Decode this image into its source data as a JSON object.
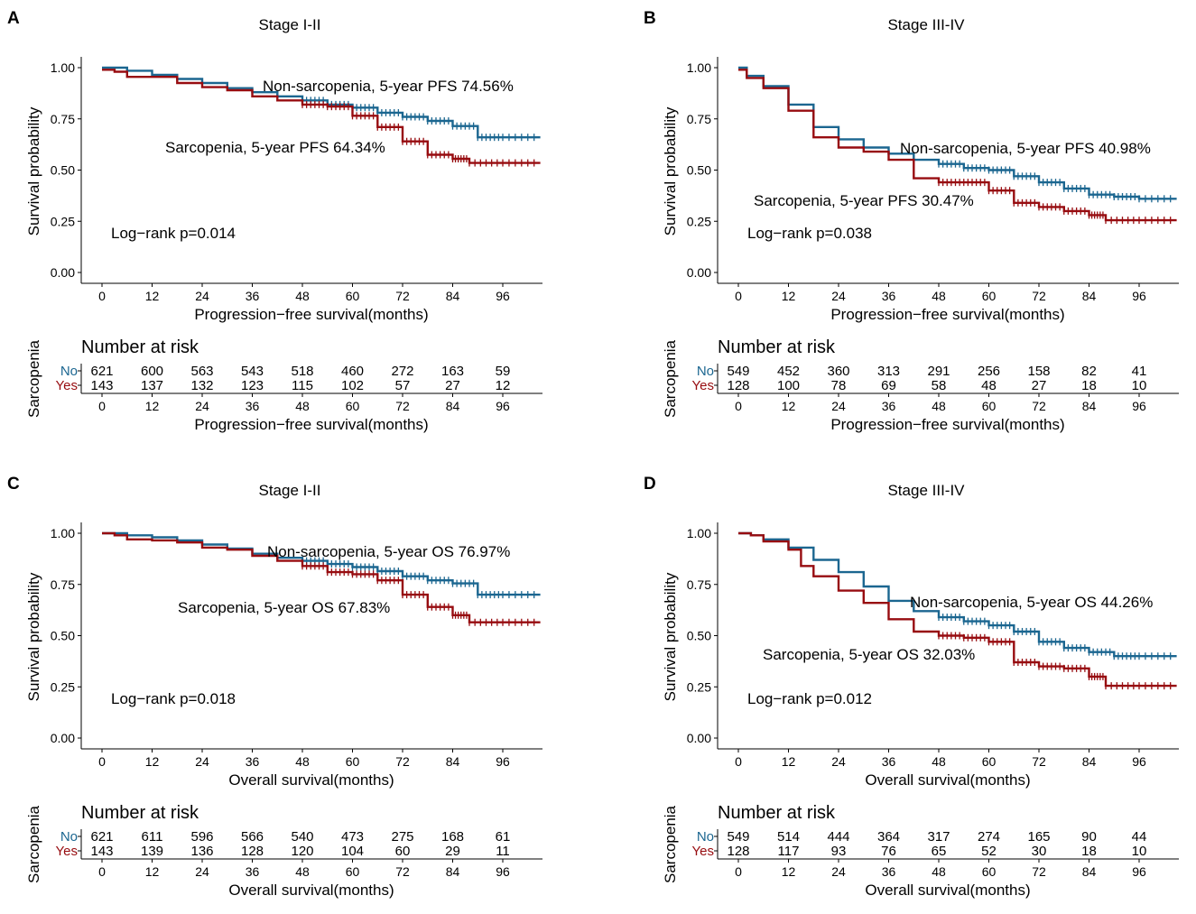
{
  "colors": {
    "no": "#1B6690",
    "yes": "#970C10",
    "axis": "#000000"
  },
  "chart_data": [
    {
      "panel": "A",
      "type": "line",
      "title": "Stage I-II",
      "xlabel": "Progression−free survival(months)",
      "ylabel": "Survival probability",
      "xticks": [
        "0",
        "12",
        "24",
        "36",
        "48",
        "60",
        "72",
        "84",
        "96"
      ],
      "yticks": [
        "0.00",
        "0.25",
        "0.50",
        "0.75",
        "1.00"
      ],
      "xlim": [
        0,
        105
      ],
      "ylim": [
        0,
        1
      ],
      "series": [
        {
          "name": "Non-sarcopenia",
          "group": "no",
          "x": [
            0,
            6,
            12,
            18,
            24,
            30,
            36,
            42,
            48,
            54,
            60,
            66,
            72,
            78,
            84,
            90,
            96,
            105
          ],
          "y": [
            1.0,
            0.985,
            0.965,
            0.945,
            0.925,
            0.9,
            0.88,
            0.86,
            0.84,
            0.82,
            0.805,
            0.78,
            0.76,
            0.74,
            0.715,
            0.66,
            0.66,
            0.66
          ]
        },
        {
          "name": "Sarcopenia",
          "group": "yes",
          "x": [
            0,
            3,
            6,
            12,
            18,
            24,
            30,
            36,
            42,
            48,
            54,
            60,
            66,
            72,
            78,
            84,
            88,
            96,
            105
          ],
          "y": [
            0.99,
            0.98,
            0.955,
            0.955,
            0.925,
            0.905,
            0.89,
            0.86,
            0.84,
            0.82,
            0.81,
            0.765,
            0.71,
            0.64,
            0.575,
            0.555,
            0.535,
            0.535,
            0.535
          ]
        }
      ],
      "annotations": {
        "non_sarcopenia": "Non-sarcopenia, 5-year PFS 74.56%",
        "sarcopenia": "Sarcopenia, 5-year PFS 64.34%",
        "logrank": "Log−rank p=0.014"
      },
      "risk_table": {
        "title": "Number at risk",
        "ylabel": "Sarcopenia",
        "xlabel": "Progression−free survival(months)",
        "groups": [
          "No",
          "Yes"
        ],
        "no": [
          "621",
          "600",
          "563",
          "543",
          "518",
          "460",
          "272",
          "163",
          "59"
        ],
        "yes": [
          "143",
          "137",
          "132",
          "123",
          "115",
          "102",
          "57",
          "27",
          "12"
        ]
      }
    },
    {
      "panel": "B",
      "type": "line",
      "title": "Stage III-IV",
      "xlabel": "Progression−free survival(months)",
      "ylabel": "Survival probability",
      "xticks": [
        "0",
        "12",
        "24",
        "36",
        "48",
        "60",
        "72",
        "84",
        "96"
      ],
      "yticks": [
        "0.00",
        "0.25",
        "0.50",
        "0.75",
        "1.00"
      ],
      "xlim": [
        0,
        105
      ],
      "ylim": [
        0,
        1
      ],
      "series": [
        {
          "name": "Non-sarcopenia",
          "group": "no",
          "x": [
            0,
            2,
            6,
            12,
            18,
            24,
            30,
            36,
            42,
            48,
            54,
            60,
            66,
            72,
            78,
            84,
            90,
            96,
            105
          ],
          "y": [
            1.0,
            0.96,
            0.91,
            0.82,
            0.71,
            0.65,
            0.61,
            0.58,
            0.55,
            0.53,
            0.51,
            0.5,
            0.47,
            0.44,
            0.41,
            0.38,
            0.37,
            0.36,
            0.36
          ]
        },
        {
          "name": "Sarcopenia",
          "group": "yes",
          "x": [
            0,
            2,
            6,
            12,
            18,
            24,
            30,
            36,
            42,
            48,
            54,
            60,
            66,
            72,
            78,
            84,
            88,
            96,
            105
          ],
          "y": [
            0.99,
            0.95,
            0.9,
            0.79,
            0.66,
            0.61,
            0.59,
            0.55,
            0.46,
            0.44,
            0.44,
            0.4,
            0.34,
            0.32,
            0.3,
            0.28,
            0.255,
            0.255,
            0.255
          ]
        }
      ],
      "annotations": {
        "non_sarcopenia": "Non-sarcopenia, 5-year PFS 40.98%",
        "sarcopenia": "Sarcopenia, 5-year PFS 30.47%",
        "logrank": "Log−rank p=0.038"
      },
      "risk_table": {
        "title": "Number at risk",
        "ylabel": "Sarcopenia",
        "xlabel": "Progression−free survival(months)",
        "groups": [
          "No",
          "Yes"
        ],
        "no": [
          "549",
          "452",
          "360",
          "313",
          "291",
          "256",
          "158",
          "82",
          "41"
        ],
        "yes": [
          "128",
          "100",
          "78",
          "69",
          "58",
          "48",
          "27",
          "18",
          "10"
        ]
      }
    },
    {
      "panel": "C",
      "type": "line",
      "title": "Stage I-II",
      "xlabel": "Overall survival(months)",
      "ylabel": "Survival probability",
      "xticks": [
        "0",
        "12",
        "24",
        "36",
        "48",
        "60",
        "72",
        "84",
        "96"
      ],
      "yticks": [
        "0.00",
        "0.25",
        "0.50",
        "0.75",
        "1.00"
      ],
      "xlim": [
        0,
        105
      ],
      "ylim": [
        0,
        1
      ],
      "series": [
        {
          "name": "Non-sarcopenia",
          "group": "no",
          "x": [
            0,
            6,
            12,
            18,
            24,
            30,
            36,
            42,
            48,
            54,
            60,
            66,
            72,
            78,
            84,
            90,
            96,
            105
          ],
          "y": [
            1.0,
            0.99,
            0.98,
            0.965,
            0.945,
            0.925,
            0.9,
            0.88,
            0.865,
            0.85,
            0.835,
            0.815,
            0.79,
            0.77,
            0.755,
            0.7,
            0.7,
            0.7
          ]
        },
        {
          "name": "Sarcopenia",
          "group": "yes",
          "x": [
            0,
            3,
            6,
            12,
            18,
            24,
            30,
            36,
            42,
            48,
            54,
            60,
            66,
            72,
            78,
            84,
            88,
            96,
            105
          ],
          "y": [
            1.0,
            0.99,
            0.97,
            0.965,
            0.955,
            0.93,
            0.92,
            0.89,
            0.865,
            0.84,
            0.81,
            0.8,
            0.77,
            0.7,
            0.64,
            0.6,
            0.565,
            0.565,
            0.565
          ]
        }
      ],
      "annotations": {
        "non_sarcopenia": "Non-sarcopenia, 5-year OS 76.97%",
        "sarcopenia": "Sarcopenia, 5-year OS 67.83%",
        "logrank": "Log−rank p=0.018"
      },
      "risk_table": {
        "title": "Number at risk",
        "ylabel": "Sarcopenia",
        "xlabel": "Overall survival(months)",
        "groups": [
          "No",
          "Yes"
        ],
        "no": [
          "621",
          "611",
          "596",
          "566",
          "540",
          "473",
          "275",
          "168",
          "61"
        ],
        "yes": [
          "143",
          "139",
          "136",
          "128",
          "120",
          "104",
          "60",
          "29",
          "11"
        ]
      }
    },
    {
      "panel": "D",
      "type": "line",
      "title": "Stage III-IV",
      "xlabel": "Overall survival(months)",
      "ylabel": "Survival probability",
      "xticks": [
        "0",
        "12",
        "24",
        "36",
        "48",
        "60",
        "72",
        "84",
        "96"
      ],
      "yticks": [
        "0.00",
        "0.25",
        "0.50",
        "0.75",
        "1.00"
      ],
      "xlim": [
        0,
        105
      ],
      "ylim": [
        0,
        1
      ],
      "series": [
        {
          "name": "Non-sarcopenia",
          "group": "no",
          "x": [
            0,
            3,
            6,
            12,
            18,
            24,
            30,
            36,
            42,
            48,
            54,
            60,
            66,
            72,
            78,
            84,
            90,
            96,
            105
          ],
          "y": [
            1.0,
            0.99,
            0.97,
            0.93,
            0.87,
            0.81,
            0.74,
            0.67,
            0.62,
            0.59,
            0.57,
            0.55,
            0.52,
            0.47,
            0.44,
            0.42,
            0.4,
            0.4,
            0.4
          ]
        },
        {
          "name": "Sarcopenia",
          "group": "yes",
          "x": [
            0,
            3,
            6,
            12,
            15,
            18,
            24,
            30,
            36,
            42,
            48,
            54,
            60,
            66,
            72,
            78,
            84,
            88,
            96,
            105
          ],
          "y": [
            1.0,
            0.99,
            0.96,
            0.92,
            0.84,
            0.79,
            0.72,
            0.66,
            0.58,
            0.52,
            0.5,
            0.49,
            0.47,
            0.37,
            0.35,
            0.34,
            0.3,
            0.255,
            0.255,
            0.255
          ]
        }
      ],
      "annotations": {
        "non_sarcopenia": "Non-sarcopenia, 5-year OS 44.26%",
        "sarcopenia": "Sarcopenia, 5-year OS 32.03%",
        "logrank": "Log−rank p=0.012"
      },
      "risk_table": {
        "title": "Number at risk",
        "ylabel": "Sarcopenia",
        "xlabel": "Overall survival(months)",
        "groups": [
          "No",
          "Yes"
        ],
        "no": [
          "549",
          "514",
          "444",
          "364",
          "317",
          "274",
          "165",
          "90",
          "44"
        ],
        "yes": [
          "128",
          "117",
          "93",
          "76",
          "65",
          "52",
          "30",
          "18",
          "10"
        ]
      }
    }
  ]
}
